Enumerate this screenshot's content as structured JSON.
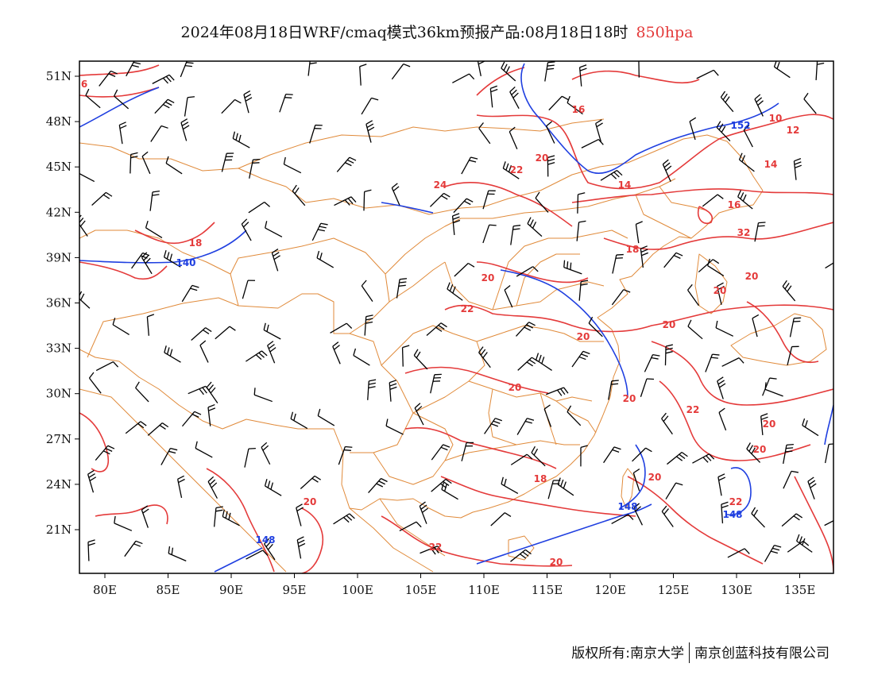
{
  "title": {
    "main": "2024年08月18日WRF/cmaq模式36km预报产品:08月18日18时",
    "level": "850hpa"
  },
  "axes": {
    "lon_ticks": [
      "80E",
      "85E",
      "90E",
      "95E",
      "100E",
      "105E",
      "110E",
      "115E",
      "120E",
      "125E",
      "130E",
      "135E"
    ],
    "lat_ticks": [
      "51N",
      "48N",
      "45N",
      "42N",
      "39N",
      "36N",
      "33N",
      "30N",
      "27N",
      "24N",
      "21N"
    ]
  },
  "colors": {
    "temperature": "#e43a3a",
    "height": "#1f3fe0",
    "boundary": "#e08a3a",
    "wind": "#000000"
  },
  "temperature_labels": [
    "6",
    "16",
    "10",
    "12",
    "14",
    "20",
    "22",
    "24",
    "14",
    "16",
    "32",
    "18",
    "18",
    "20",
    "20",
    "20",
    "22",
    "20",
    "20",
    "20",
    "20",
    "22",
    "20",
    "20",
    "18",
    "20",
    "22",
    "20",
    "22",
    "20"
  ],
  "height_labels": [
    "152",
    "140",
    "148",
    "148",
    "148"
  ],
  "footer": {
    "left": "版权所有:南京大学",
    "right": "南京创蓝科技有限公司"
  }
}
